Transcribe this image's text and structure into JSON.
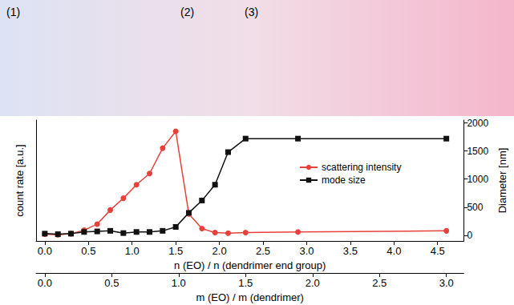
{
  "chart_data": {
    "type": "line",
    "annotations": [
      "(1)",
      "(2)",
      "(3)"
    ],
    "xlabel": "n (EO) / n (dendrimer end group)",
    "ylabel": "count rate [a.u.]",
    "y2label": "Diameter [nm]",
    "x2label": "m (EO) / m (dendrimer)",
    "x": [
      0,
      0.15,
      0.3,
      0.45,
      0.6,
      0.75,
      0.9,
      1.05,
      1.2,
      1.35,
      1.5,
      1.65,
      1.8,
      1.95,
      2.1,
      2.3,
      2.9,
      4.6
    ],
    "series": [
      {
        "name": "scattering intensity",
        "color": "#e8413c",
        "marker": "circle",
        "line_style": "solid",
        "axis": "y",
        "values": [
          20,
          10,
          30,
          90,
          200,
          450,
          660,
          900,
          1100,
          1550,
          1850,
          380,
          120,
          50,
          40,
          50,
          60,
          80
        ]
      },
      {
        "name": "mode size",
        "color": "#111111",
        "marker": "square",
        "line_style": "solid",
        "axis": "y2",
        "values": [
          30,
          20,
          30,
          60,
          70,
          80,
          40,
          60,
          60,
          80,
          150,
          400,
          620,
          900,
          1480,
          1720,
          1720,
          1720
        ]
      }
    ],
    "xlim": [
      -0.1,
      4.8
    ],
    "xticks": [
      {
        "value": 0,
        "label": "0.0"
      },
      {
        "value": 0.5,
        "label": "0.5"
      },
      {
        "value": 1,
        "label": "1.0"
      },
      {
        "value": 1.5,
        "label": "1.5"
      },
      {
        "value": 2,
        "label": "2.0"
      },
      {
        "value": 2.5,
        "label": "2.5"
      },
      {
        "value": 3,
        "label": "3.0"
      },
      {
        "value": 3.5,
        "label": "3.5"
      },
      {
        "value": 4,
        "label": "4.0"
      },
      {
        "value": 4.5,
        "label": "4.5"
      }
    ],
    "x2lim": [
      -0.065,
      3.13
    ],
    "x2ticks": [
      {
        "value": 0,
        "label": "0.0"
      },
      {
        "value": 0.5,
        "label": "0.5"
      },
      {
        "value": 1,
        "label": "1.0"
      },
      {
        "value": 1.5,
        "label": "1.5"
      },
      {
        "value": 2,
        "label": "2.0"
      },
      {
        "value": 2.5,
        "label": "2.5"
      },
      {
        "value": 3,
        "label": "3.0"
      }
    ],
    "ylim": [
      -100,
      2050
    ],
    "y2lim": [
      -100,
      2050
    ],
    "y2ticks": [
      0,
      500,
      1000,
      1500,
      2000
    ],
    "tick_labels": "x",
    "grid": false,
    "legend": "center"
  }
}
